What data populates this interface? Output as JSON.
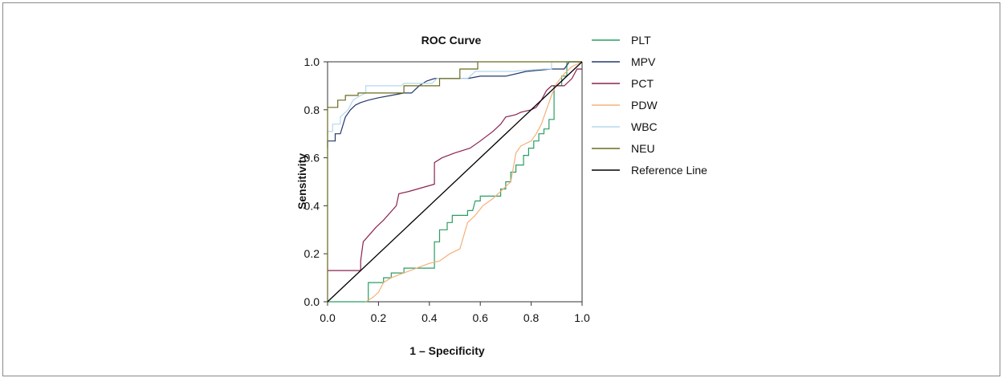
{
  "chart_data": {
    "type": "line",
    "title": "ROC Curve",
    "xlabel": "1 – Specificity",
    "ylabel": "Sensitivity",
    "xlim": [
      0,
      1
    ],
    "ylim": [
      0,
      1
    ],
    "x_ticks": [
      "0.0",
      "0.2",
      "0.4",
      "0.6",
      "0.8",
      "1.0"
    ],
    "y_ticks": [
      "0.0",
      "0.2",
      "0.4",
      "0.6",
      "0.8",
      "1.0"
    ],
    "grid": false,
    "legend_position": "right",
    "series": [
      {
        "name": "PLT",
        "color": "#2a9d63",
        "points": [
          [
            0,
            0
          ],
          [
            0.16,
            0
          ],
          [
            0.16,
            0.08
          ],
          [
            0.22,
            0.08
          ],
          [
            0.22,
            0.1
          ],
          [
            0.25,
            0.1
          ],
          [
            0.25,
            0.12
          ],
          [
            0.28,
            0.12
          ],
          [
            0.3,
            0.12
          ],
          [
            0.3,
            0.14
          ],
          [
            0.42,
            0.14
          ],
          [
            0.42,
            0.25
          ],
          [
            0.44,
            0.25
          ],
          [
            0.44,
            0.3
          ],
          [
            0.47,
            0.3
          ],
          [
            0.47,
            0.33
          ],
          [
            0.49,
            0.33
          ],
          [
            0.49,
            0.36
          ],
          [
            0.55,
            0.36
          ],
          [
            0.55,
            0.38
          ],
          [
            0.57,
            0.38
          ],
          [
            0.58,
            0.42
          ],
          [
            0.6,
            0.42
          ],
          [
            0.6,
            0.44
          ],
          [
            0.68,
            0.44
          ],
          [
            0.68,
            0.47
          ],
          [
            0.7,
            0.47
          ],
          [
            0.7,
            0.5
          ],
          [
            0.72,
            0.5
          ],
          [
            0.72,
            0.54
          ],
          [
            0.74,
            0.54
          ],
          [
            0.74,
            0.57
          ],
          [
            0.77,
            0.57
          ],
          [
            0.77,
            0.61
          ],
          [
            0.79,
            0.61
          ],
          [
            0.79,
            0.64
          ],
          [
            0.81,
            0.64
          ],
          [
            0.81,
            0.67
          ],
          [
            0.83,
            0.67
          ],
          [
            0.83,
            0.7
          ],
          [
            0.85,
            0.7
          ],
          [
            0.85,
            0.72
          ],
          [
            0.87,
            0.72
          ],
          [
            0.87,
            0.76
          ],
          [
            0.89,
            0.76
          ],
          [
            0.89,
            0.9
          ],
          [
            0.92,
            0.9
          ],
          [
            0.92,
            0.94
          ],
          [
            0.94,
            0.94
          ],
          [
            0.94,
            1
          ],
          [
            1,
            1
          ]
        ]
      },
      {
        "name": "MPV",
        "color": "#24386b",
        "points": [
          [
            0,
            0.64
          ],
          [
            0,
            0.67
          ],
          [
            0.03,
            0.67
          ],
          [
            0.03,
            0.7
          ],
          [
            0.05,
            0.7
          ],
          [
            0.07,
            0.77
          ],
          [
            0.09,
            0.8
          ],
          [
            0.11,
            0.82
          ],
          [
            0.13,
            0.83
          ],
          [
            0.16,
            0.84
          ],
          [
            0.2,
            0.85
          ],
          [
            0.25,
            0.86
          ],
          [
            0.3,
            0.87
          ],
          [
            0.33,
            0.87
          ],
          [
            0.36,
            0.9
          ],
          [
            0.39,
            0.92
          ],
          [
            0.42,
            0.93
          ],
          [
            0.46,
            0.93
          ],
          [
            0.5,
            0.93
          ],
          [
            0.55,
            0.93
          ],
          [
            0.6,
            0.94
          ],
          [
            0.7,
            0.94
          ],
          [
            0.78,
            0.96
          ],
          [
            0.88,
            0.97
          ],
          [
            0.93,
            0.97
          ],
          [
            0.95,
            1
          ],
          [
            1,
            1
          ]
        ]
      },
      {
        "name": "PCT",
        "color": "#8b2252",
        "points": [
          [
            0,
            0.13
          ],
          [
            0.13,
            0.13
          ],
          [
            0.13,
            0.17
          ],
          [
            0.14,
            0.25
          ],
          [
            0.19,
            0.31
          ],
          [
            0.22,
            0.34
          ],
          [
            0.27,
            0.4
          ],
          [
            0.28,
            0.45
          ],
          [
            0.32,
            0.46
          ],
          [
            0.42,
            0.49
          ],
          [
            0.42,
            0.58
          ],
          [
            0.45,
            0.6
          ],
          [
            0.5,
            0.62
          ],
          [
            0.56,
            0.64
          ],
          [
            0.6,
            0.67
          ],
          [
            0.65,
            0.71
          ],
          [
            0.68,
            0.74
          ],
          [
            0.7,
            0.77
          ],
          [
            0.74,
            0.78
          ],
          [
            0.76,
            0.79
          ],
          [
            0.8,
            0.8
          ],
          [
            0.82,
            0.81
          ],
          [
            0.84,
            0.84
          ],
          [
            0.86,
            0.88
          ],
          [
            0.88,
            0.9
          ],
          [
            0.9,
            0.9
          ],
          [
            0.93,
            0.9
          ],
          [
            0.96,
            0.93
          ],
          [
            0.98,
            0.97
          ],
          [
            1,
            0.97
          ]
        ]
      },
      {
        "name": "PDW",
        "color": "#f5b07a",
        "points": [
          [
            0.15,
            0
          ],
          [
            0.18,
            0.02
          ],
          [
            0.2,
            0.04
          ],
          [
            0.22,
            0.08
          ],
          [
            0.25,
            0.1
          ],
          [
            0.3,
            0.12
          ],
          [
            0.35,
            0.14
          ],
          [
            0.4,
            0.16
          ],
          [
            0.44,
            0.17
          ],
          [
            0.48,
            0.2
          ],
          [
            0.52,
            0.22
          ],
          [
            0.55,
            0.33
          ],
          [
            0.58,
            0.36
          ],
          [
            0.61,
            0.4
          ],
          [
            0.65,
            0.43
          ],
          [
            0.69,
            0.47
          ],
          [
            0.72,
            0.5
          ],
          [
            0.74,
            0.62
          ],
          [
            0.76,
            0.65
          ],
          [
            0.8,
            0.67
          ],
          [
            0.82,
            0.7
          ],
          [
            0.84,
            0.74
          ],
          [
            0.86,
            0.8
          ],
          [
            0.88,
            0.86
          ],
          [
            0.9,
            0.91
          ],
          [
            0.93,
            0.95
          ],
          [
            0.96,
            0.98
          ],
          [
            1,
            1
          ]
        ]
      },
      {
        "name": "WBC",
        "color": "#b5d8ee",
        "points": [
          [
            0,
            0
          ],
          [
            0,
            0.71
          ],
          [
            0.02,
            0.71
          ],
          [
            0.02,
            0.74
          ],
          [
            0.05,
            0.74
          ],
          [
            0.05,
            0.77
          ],
          [
            0.08,
            0.8
          ],
          [
            0.1,
            0.84
          ],
          [
            0.13,
            0.86
          ],
          [
            0.15,
            0.87
          ],
          [
            0.15,
            0.9
          ],
          [
            0.29,
            0.9
          ],
          [
            0.3,
            0.91
          ],
          [
            0.41,
            0.91
          ],
          [
            0.43,
            0.93
          ],
          [
            0.55,
            0.93
          ],
          [
            0.58,
            0.96
          ],
          [
            0.72,
            0.96
          ],
          [
            0.85,
            0.97
          ],
          [
            0.88,
            0.97
          ],
          [
            0.88,
            1
          ],
          [
            1,
            1
          ]
        ]
      },
      {
        "name": "NEU",
        "color": "#6b6b1e",
        "points": [
          [
            0,
            0
          ],
          [
            0,
            0.81
          ],
          [
            0.04,
            0.81
          ],
          [
            0.04,
            0.84
          ],
          [
            0.07,
            0.84
          ],
          [
            0.07,
            0.86
          ],
          [
            0.12,
            0.86
          ],
          [
            0.12,
            0.87
          ],
          [
            0.3,
            0.87
          ],
          [
            0.3,
            0.9
          ],
          [
            0.44,
            0.9
          ],
          [
            0.44,
            0.93
          ],
          [
            0.52,
            0.93
          ],
          [
            0.52,
            0.97
          ],
          [
            0.59,
            0.97
          ],
          [
            0.59,
            1
          ],
          [
            1,
            1
          ]
        ]
      },
      {
        "name": "Reference Line",
        "color": "#000000",
        "points": [
          [
            0,
            0
          ],
          [
            1,
            1
          ]
        ]
      }
    ]
  }
}
